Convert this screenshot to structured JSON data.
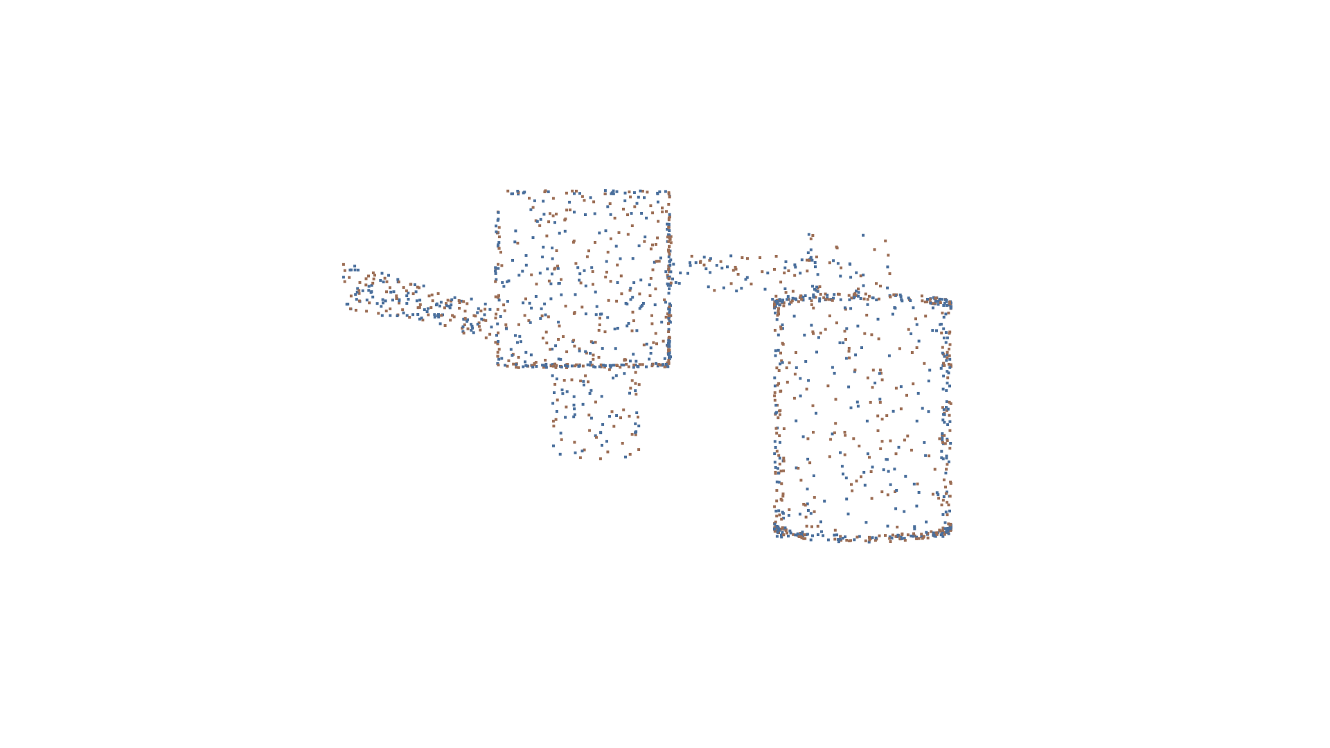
{
  "scene": {
    "background_color": "#ffffff",
    "point_colors": [
      "#4a6f9c",
      "#9c6e55"
    ],
    "components": [
      {
        "name": "left-wedge",
        "shape": "wedge",
        "density": 180
      },
      {
        "name": "center-box",
        "shape": "box",
        "density": 420
      },
      {
        "name": "center-box-leg",
        "shape": "box",
        "density": 90
      },
      {
        "name": "connector-arm",
        "shape": "box",
        "density": 80
      },
      {
        "name": "right-cylinder",
        "shape": "cylinder",
        "density": 700
      },
      {
        "name": "right-cylinder-cap",
        "shape": "box",
        "density": 45
      }
    ]
  }
}
